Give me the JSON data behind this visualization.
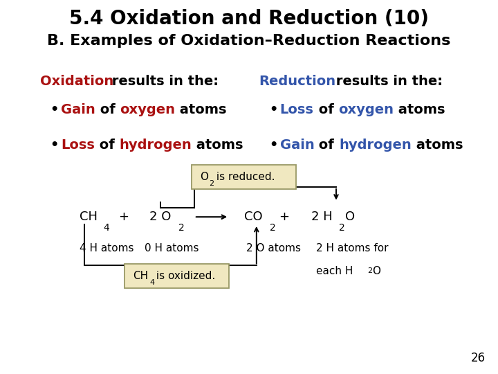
{
  "title1": "5.4 Oxidation and Reduction (10)",
  "title2": "B. Examples of Oxidation–Reduction Reactions",
  "title1_color": "#000000",
  "title2_color": "#000000",
  "ox_color": "#aa1111",
  "red_color": "#3355aa",
  "black": "#000000",
  "box_fill": "#f0e8c0",
  "box_edge": "#999966",
  "page_number": "26",
  "bg_color": "#ffffff",
  "title1_size": 20,
  "title2_size": 16,
  "header_size": 14,
  "bullet_size": 14,
  "eq_size": 13,
  "label_size": 11
}
